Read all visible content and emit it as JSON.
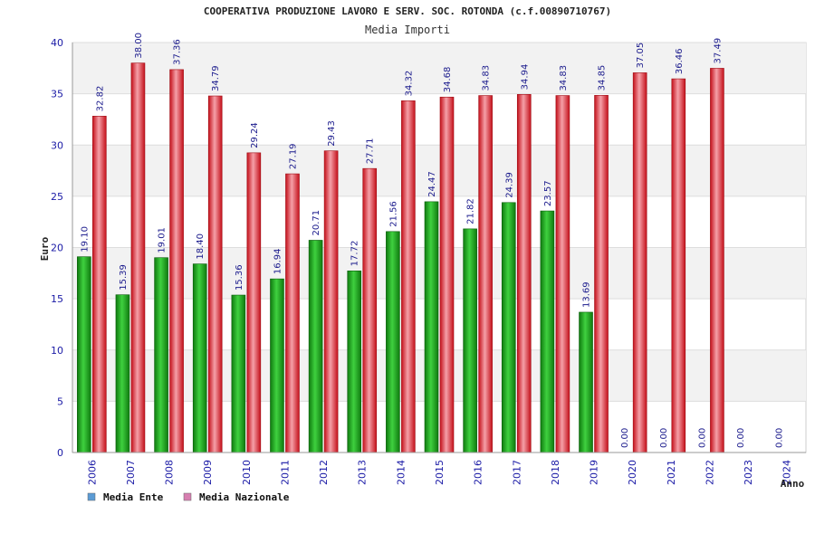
{
  "chart_data": {
    "type": "bar",
    "title": "COOPERATIVA PRODUZIONE LAVORO E SERV. SOC. ROTONDA (c.f.00890710767)",
    "subtitle": "Media Importi",
    "xlabel": "Anno",
    "ylabel": "Euro",
    "ylim": [
      0,
      40
    ],
    "yticks": [
      0,
      5,
      10,
      15,
      20,
      25,
      30,
      35,
      40
    ],
    "grid": true,
    "legend_position": "bottom-left",
    "categories": [
      "2006",
      "2007",
      "2008",
      "2009",
      "2010",
      "2011",
      "2012",
      "2013",
      "2014",
      "2015",
      "2016",
      "2017",
      "2018",
      "2019",
      "2020",
      "2021",
      "2022",
      "2023",
      "2024"
    ],
    "series": [
      {
        "name": "Media Ente",
        "color": "#1fa01f",
        "legend_color": "#5b9bd5",
        "values": [
          19.1,
          15.39,
          19.01,
          18.4,
          15.36,
          16.94,
          20.71,
          17.72,
          21.56,
          24.47,
          21.82,
          24.39,
          23.57,
          13.69,
          0,
          0,
          0,
          0,
          0
        ],
        "labels": [
          "19.10",
          "15.39",
          "19.01",
          "18.40",
          "15.36",
          "16.94",
          "20.71",
          "17.72",
          "21.56",
          "24.47",
          "21.82",
          "24.39",
          "23.57",
          "13.69",
          "0.00",
          "0.00",
          "0.00",
          "0.00",
          "0.00"
        ]
      },
      {
        "name": "Media Nazionale",
        "color": "#e8202a",
        "legend_color": "#d77fb0",
        "values": [
          32.82,
          38.0,
          37.36,
          34.79,
          29.24,
          27.19,
          29.43,
          27.71,
          34.32,
          34.68,
          34.83,
          34.94,
          34.83,
          34.85,
          37.05,
          36.46,
          37.49,
          null,
          null
        ],
        "labels": [
          "32.82",
          "38.00",
          "37.36",
          "34.79",
          "29.24",
          "27.19",
          "29.43",
          "27.71",
          "34.32",
          "34.68",
          "34.83",
          "34.94",
          "34.83",
          "34.85",
          "37.05",
          "36.46",
          "37.49",
          null,
          null
        ]
      }
    ]
  }
}
